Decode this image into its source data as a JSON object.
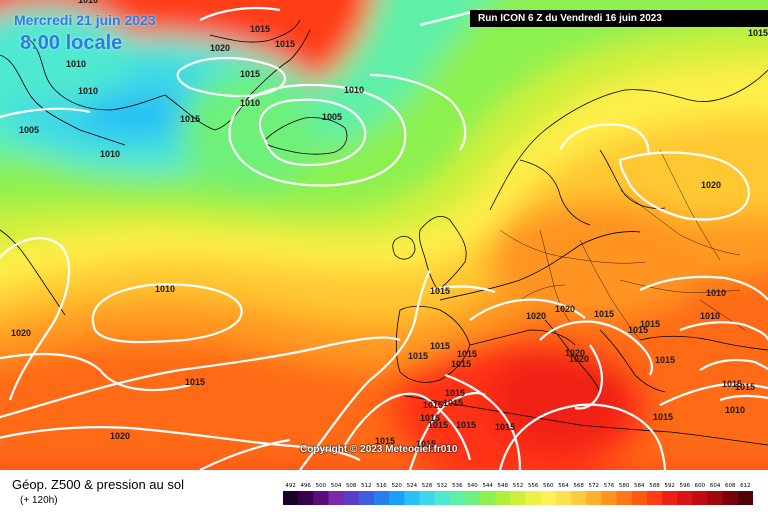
{
  "header": {
    "date": "Mercredi 21 juin 2023",
    "time": "8:00 locale",
    "run": "Run ICON 6 Z du Vendredi 16 juin 2023",
    "copyright": "Copyright © 2023 Meteociel.fr010"
  },
  "footer": {
    "title": "Géop. Z500 & pression au sol",
    "subtitle": "(+ 120h)"
  },
  "legend": {
    "ticks": [
      "492",
      "496",
      "500",
      "504",
      "508",
      "512",
      "516",
      "520",
      "524",
      "528",
      "532",
      "536",
      "540",
      "544",
      "548",
      "552",
      "556",
      "560",
      "564",
      "568",
      "572",
      "576",
      "580",
      "584",
      "588",
      "592",
      "596",
      "600",
      "604",
      "608",
      "612"
    ],
    "colors": [
      "#1a0026",
      "#3a0050",
      "#5a0d7a",
      "#7a2aa8",
      "#5a3ec8",
      "#3e5de0",
      "#2a7df0",
      "#1aa0f5",
      "#28c0f5",
      "#3ed6e8",
      "#4fe8d0",
      "#5ef0a8",
      "#6ef07a",
      "#8cf050",
      "#aef03a",
      "#cff03a",
      "#eef04a",
      "#fff05a",
      "#ffe050",
      "#ffcc40",
      "#ffb030",
      "#ff9420",
      "#ff7818",
      "#ff5a14",
      "#ff3c14",
      "#f02014",
      "#d81414",
      "#c00c10",
      "#a0080c",
      "#78040a",
      "#500208"
    ]
  },
  "isobars": [
    {
      "v": "1010",
      "name": "isobar-label-1010-top"
    },
    {
      "v": "1015",
      "name": "isobar-label-1015-top"
    },
    {
      "v": "1020",
      "name": "isobar-label-1020-greenland"
    },
    {
      "v": "1010",
      "name": "isobar-label-1010-greenland-w"
    },
    {
      "v": "1015",
      "name": "isobar-label-1015-greenland"
    },
    {
      "v": "1015",
      "name": "isobar-label-1015-greenland-coast"
    },
    {
      "v": "1010",
      "name": "isobar-label-1010-west"
    },
    {
      "v": "1010",
      "name": "isobar-label-1010-denmark-strait"
    },
    {
      "v": "1010",
      "name": "isobar-label-1010-iceland-n"
    },
    {
      "v": "1015",
      "name": "isobar-label-1015-greenland-s"
    },
    {
      "v": "1005",
      "name": "isobar-label-1005-iceland"
    },
    {
      "v": "1005",
      "name": "isobar-label-1005-west"
    },
    {
      "v": "1010",
      "name": "isobar-label-1010-labrador"
    },
    {
      "v": "1020",
      "name": "isobar-label-1020-europe-ne"
    },
    {
      "v": "1010",
      "name": "isobar-label-1010-atlantic"
    },
    {
      "v": "1020",
      "name": "isobar-label-1020-atlantic-w"
    },
    {
      "v": "1015",
      "name": "isobar-label-1015-france"
    },
    {
      "v": "1020",
      "name": "isobar-label-1020-alps"
    },
    {
      "v": "1020",
      "name": "isobar-label-1020-italy-n"
    },
    {
      "v": "1015",
      "name": "isobar-label-1015-alps-e"
    },
    {
      "v": "1015",
      "name": "isobar-label-1015-balkans-n"
    },
    {
      "v": "1015",
      "name": "isobar-label-1015-balkans"
    },
    {
      "v": "1010",
      "name": "isobar-label-1010-russia"
    },
    {
      "v": "1010",
      "name": "isobar-label-1010-ukraine"
    },
    {
      "v": "1015",
      "name": "isobar-label-1015-iberia-n"
    },
    {
      "v": "1015",
      "name": "isobar-label-1015-iberia"
    },
    {
      "v": "1015",
      "name": "isobar-label-1015-iberia-e"
    },
    {
      "v": "1015",
      "name": "isobar-label-1015-iberia-s"
    },
    {
      "v": "1020",
      "name": "isobar-label-1020-italy"
    },
    {
      "v": "1020",
      "name": "isobar-label-1020-italy-s"
    },
    {
      "v": "1015",
      "name": "isobar-label-1015-greece"
    },
    {
      "v": "1015",
      "name": "isobar-label-1015-turkey"
    },
    {
      "v": "1015",
      "name": "isobar-label-1015-turkey-e"
    },
    {
      "v": "1010",
      "name": "isobar-label-1010-turkey-s"
    },
    {
      "v": "1015",
      "name": "isobar-label-1015-mid-atlantic"
    },
    {
      "v": "1015",
      "name": "isobar-label-1015-morocco"
    },
    {
      "v": "1015",
      "name": "isobar-label-1015-algeria"
    },
    {
      "v": "1015",
      "name": "isobar-label-1015-tunisia"
    },
    {
      "v": "1015",
      "name": "isobar-label-1015-libya-w"
    },
    {
      "v": "1015",
      "name": "isobar-label-1015-north-africa"
    },
    {
      "v": "1015",
      "name": "isobar-label-1015-sahara-n"
    },
    {
      "v": "1015",
      "name": "isobar-label-1015-sahara"
    },
    {
      "v": "1015",
      "name": "isobar-label-1015-africa-coast"
    },
    {
      "v": "1015",
      "name": "isobar-label-1015-libya"
    },
    {
      "v": "1015",
      "name": "isobar-label-1015-egypt-w"
    },
    {
      "v": "1020",
      "name": "isobar-label-1020-azores"
    },
    {
      "v": "1015",
      "name": "isobar-label-1015-corner"
    }
  ]
}
